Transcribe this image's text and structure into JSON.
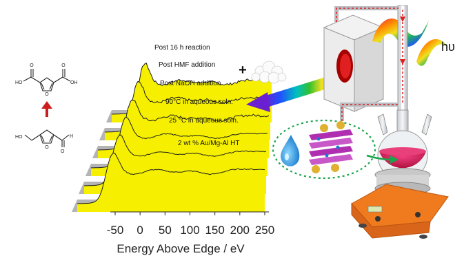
{
  "chart_data": {
    "type": "area",
    "xlabel": "Energy Above Edge / eV",
    "x_ticks": [
      "-50",
      "0",
      "50",
      "100",
      "150",
      "200",
      "250"
    ],
    "xlim": [
      -50,
      250
    ],
    "series": [
      {
        "name": "2 wt % Au/Mg-Al HT"
      },
      {
        "name": "25 °C in aqueous soln."
      },
      {
        "name": "90°C in aqueous soln."
      },
      {
        "name": "Post NaOH addition"
      },
      {
        "name": "Post HMF addition"
      },
      {
        "name": "Post 16 h reaction"
      }
    ]
  },
  "labels": {
    "plus": "+",
    "light_symbol": "hυ"
  },
  "colors": {
    "spectrum_fill": "#f6f000",
    "spectrum_side": "#b4b4b4",
    "flask_liquid": "#d81b5c",
    "stirrer": "#f07a1e",
    "dotted_border": "#1aa54a",
    "reaction_arrow": "#cc1e1e"
  },
  "icons": {
    "molecule_top": "fdca-molecule-icon",
    "molecule_bottom": "hmf-molecule-icon",
    "reaction_arrow": "up-arrow-icon",
    "powder": "catalyst-powder-icon",
    "rainbow_arrow": "rainbow-arrow-icon",
    "lamp": "light-source-icon",
    "wave": "light-wave-icon",
    "condenser": "condenser-icon",
    "flask": "round-bottom-flask-icon",
    "stirrer": "magnetic-stirrer-icon",
    "droplet": "water-droplet-icon",
    "hydrotalcite": "layered-hydrotalcite-icon"
  }
}
